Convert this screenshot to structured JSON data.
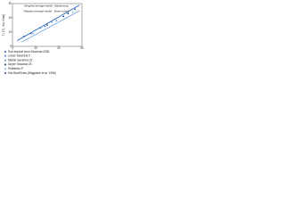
{
  "chart_data": {
    "type": "scatter",
    "y_label": "Tₑ (°C, Sw, Grail)",
    "xlim": [
      0,
      30
    ],
    "ylim": [
      0,
      30
    ],
    "xticks": [
      0,
      10,
      20,
      30
    ],
    "yticks": [
      0,
      10,
      20,
      30
    ],
    "fit_lines": [
      {
        "name": "Weighted average rainfall - Mawlynnong",
        "color": "#1f5fbf",
        "x": [
          2,
          29
        ],
        "y": [
          4,
          29
        ]
      },
      {
        "name": "Weighted average rainfall - Sheet current",
        "color": "#6a9fd8",
        "x": [
          4,
          29
        ],
        "y": [
          3,
          25
        ]
      }
    ],
    "series": [
      {
        "name": "Sub-tropical semi-Savanna 2006",
        "color": "#1f5fbf",
        "x": [
          5,
          8
        ],
        "y": [
          7,
          9
        ]
      },
      {
        "name": "Lower Savanna 5",
        "color": "#3a7bd5",
        "x": [
          12,
          14
        ],
        "y": [
          13,
          14
        ]
      },
      {
        "name": "Middle Savanna 15",
        "color": "#5e9be0",
        "x": [
          17,
          19
        ],
        "y": [
          17,
          18
        ]
      },
      {
        "name": "Upper Savanna 25",
        "color": "#0a3d8f",
        "x": [
          22,
          24
        ],
        "y": [
          21,
          23
        ]
      },
      {
        "name": "Pebbleton P",
        "color": "#7fb2e8",
        "x": [
          9,
          26
        ],
        "y": [
          9,
          24
        ]
      },
      {
        "name": "Kilo BradShaw (Wigginton et al. 1996)",
        "color": "#244a7a",
        "x": [
          15,
          27
        ],
        "y": [
          15,
          26
        ]
      }
    ]
  }
}
